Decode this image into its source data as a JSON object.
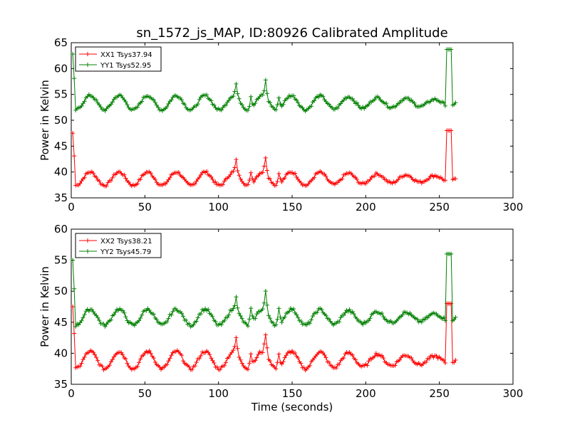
{
  "figure": {
    "title": "sn_1572_js_MAP, ID:80926 Calibrated Amplitude",
    "xlabel": "Time (seconds)"
  },
  "chart_data": [
    {
      "type": "line",
      "ylabel": "Power in Kelvin",
      "xlim": [
        0,
        300
      ],
      "ylim": [
        35,
        65
      ],
      "xticks": [
        "0",
        "50",
        "100",
        "150",
        "200",
        "250",
        "300"
      ],
      "yticks": [
        "35",
        "40",
        "45",
        "50",
        "55",
        "60",
        "65"
      ],
      "grid": false,
      "legend_placement": "top-left",
      "series": [
        {
          "name": "XX1 Tsys37.94",
          "color": "#ff0000",
          "marker": "+",
          "base": 38.7,
          "amp": 1.3,
          "peak_start": 47.5,
          "peak_end": 48.0
        },
        {
          "name": "YY1 Tsys52.95",
          "color": "#008000",
          "marker": "+",
          "base": 53.4,
          "amp": 1.4,
          "peak_start": 62.8,
          "peak_end": 63.7
        }
      ]
    },
    {
      "type": "line",
      "ylabel": "Power in Kelvin",
      "xlim": [
        0,
        300
      ],
      "ylim": [
        35,
        60
      ],
      "xticks": [
        "0",
        "50",
        "100",
        "150",
        "200",
        "250",
        "300"
      ],
      "yticks": [
        "35",
        "40",
        "45",
        "50",
        "55",
        "60"
      ],
      "grid": false,
      "legend_placement": "top-left",
      "series": [
        {
          "name": "XX2 Tsys38.21",
          "color": "#ff0000",
          "marker": "+",
          "base": 38.9,
          "amp": 1.4,
          "peak_start": 47.5,
          "peak_end": 48.0
        },
        {
          "name": "YY2 Tsys45.79",
          "color": "#008000",
          "marker": "+",
          "base": 45.8,
          "amp": 1.3,
          "peak_start": 55.0,
          "peak_end": 56.0
        }
      ]
    }
  ]
}
